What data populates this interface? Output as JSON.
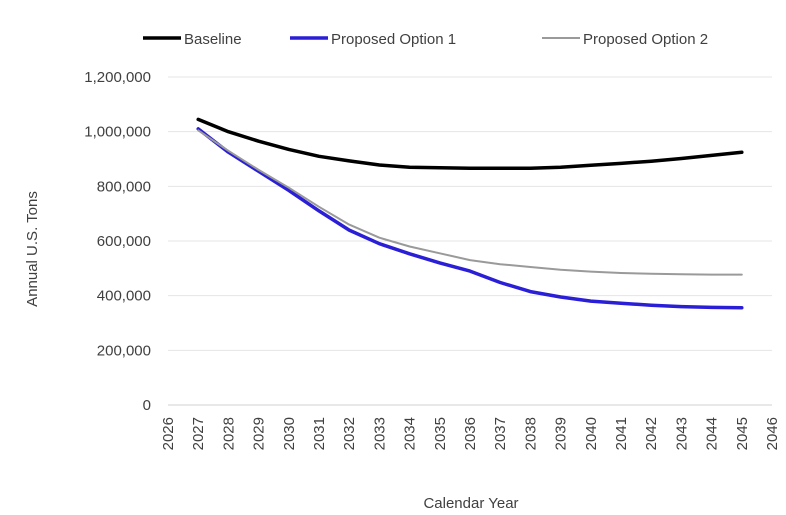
{
  "chart_data": {
    "type": "line",
    "xlabel": "Calendar Year",
    "ylabel": "Annual U.S. Tons",
    "xlim": [
      2026,
      2046
    ],
    "ylim": [
      0,
      1200000
    ],
    "x_ticks": [
      "2026",
      "2027",
      "2028",
      "2029",
      "2030",
      "2031",
      "2032",
      "2033",
      "2034",
      "2035",
      "2036",
      "2037",
      "2038",
      "2039",
      "2040",
      "2041",
      "2042",
      "2043",
      "2044",
      "2045",
      "2046"
    ],
    "y_ticks": [
      "0",
      "200,000",
      "400,000",
      "600,000",
      "800,000",
      "1,000,000",
      "1,200,000"
    ],
    "y_tick_values": [
      0,
      200000,
      400000,
      600000,
      800000,
      1000000,
      1200000
    ],
    "grid": "horizontal",
    "legend_position": "top",
    "x": [
      2027,
      2028,
      2029,
      2030,
      2031,
      2032,
      2033,
      2034,
      2035,
      2036,
      2037,
      2038,
      2039,
      2040,
      2041,
      2042,
      2043,
      2044,
      2045
    ],
    "series": [
      {
        "name": "Baseline",
        "color": "#000000",
        "values": [
          1045000,
          1000000,
          965000,
          935000,
          910000,
          893000,
          878000,
          870000,
          868000,
          866000,
          866000,
          866000,
          870000,
          877000,
          884000,
          892000,
          902000,
          913000,
          925000
        ]
      },
      {
        "name": "Proposed Option 1",
        "color": "#2a1fd6",
        "values": [
          1010000,
          925000,
          855000,
          785000,
          710000,
          640000,
          590000,
          553000,
          520000,
          490000,
          448000,
          415000,
          395000,
          380000,
          372000,
          365000,
          360000,
          357000,
          356000
        ]
      },
      {
        "name": "Proposed Option 2",
        "color": "#9a9a9a",
        "values": [
          1005000,
          930000,
          860000,
          795000,
          725000,
          660000,
          612000,
          580000,
          555000,
          530000,
          515000,
          505000,
          495000,
          488000,
          483000,
          480000,
          478000,
          477000,
          477000
        ]
      }
    ]
  }
}
